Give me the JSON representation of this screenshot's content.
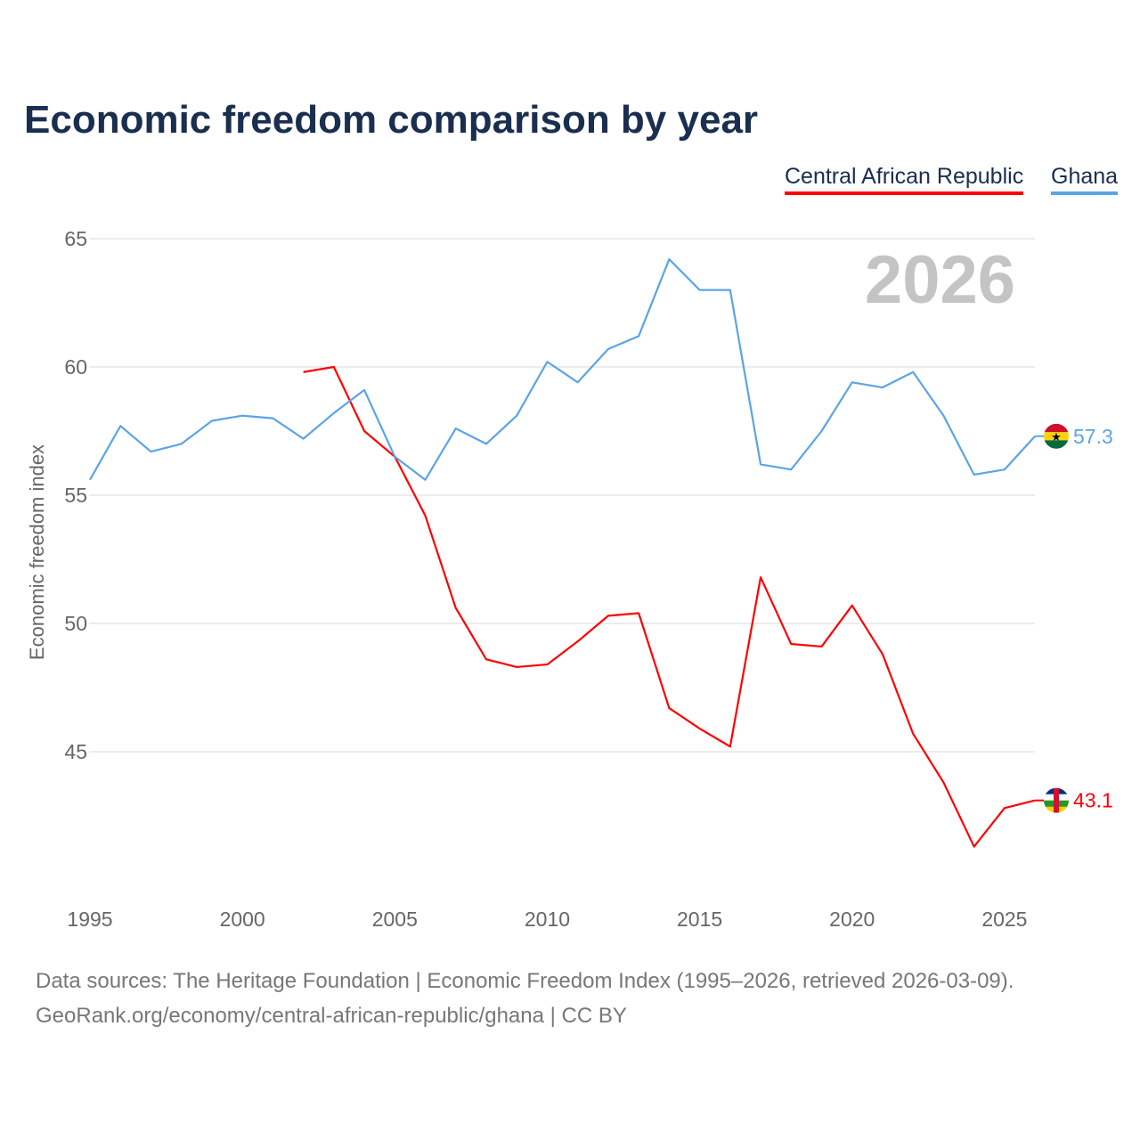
{
  "title": "Economic freedom comparison by year",
  "footer": {
    "line1": "Data sources: The Heritage Foundation | Economic Freedom Index (1995–2026, retrieved 2026-03-09).",
    "line2": "GeoRank.org/economy/central-african-republic/ghana | CC BY"
  },
  "chart_data": {
    "type": "line",
    "title": "Economic freedom comparison by year",
    "xlabel": "",
    "ylabel": "Economic freedom index",
    "xlim": [
      1995,
      2026
    ],
    "ylim": [
      40,
      65
    ],
    "x_ticks": [
      1995,
      2000,
      2005,
      2010,
      2015,
      2020,
      2025
    ],
    "y_ticks": [
      45,
      50,
      55,
      60,
      65
    ],
    "grid": true,
    "legend_position": "top-right",
    "year_annotation": "2026",
    "series": [
      {
        "name": "Central African Republic",
        "color": "#ff0000",
        "end_label": "43.1",
        "x": [
          2002,
          2003,
          2004,
          2005,
          2006,
          2007,
          2008,
          2009,
          2010,
          2011,
          2012,
          2013,
          2014,
          2015,
          2016,
          2017,
          2018,
          2019,
          2020,
          2021,
          2022,
          2023,
          2024,
          2025,
          2026
        ],
        "values": [
          59.8,
          60.0,
          57.5,
          56.5,
          54.2,
          50.6,
          48.6,
          48.3,
          48.4,
          49.3,
          50.3,
          50.4,
          46.7,
          45.9,
          45.2,
          51.8,
          49.2,
          49.1,
          50.7,
          48.8,
          45.7,
          43.8,
          41.3,
          42.8,
          43.1
        ]
      },
      {
        "name": "Ghana",
        "color": "#5ba4e8",
        "end_label": "57.3",
        "x": [
          1995,
          1996,
          1997,
          1998,
          1999,
          2000,
          2001,
          2002,
          2003,
          2004,
          2005,
          2006,
          2007,
          2008,
          2009,
          2010,
          2011,
          2012,
          2013,
          2014,
          2015,
          2016,
          2017,
          2018,
          2019,
          2020,
          2021,
          2022,
          2023,
          2024,
          2025,
          2026
        ],
        "values": [
          55.6,
          57.7,
          56.7,
          57.0,
          57.9,
          58.1,
          58.0,
          57.2,
          58.2,
          59.1,
          56.5,
          55.6,
          57.6,
          57.0,
          58.1,
          60.2,
          59.4,
          60.7,
          61.2,
          64.2,
          63.0,
          63.0,
          56.2,
          56.0,
          57.5,
          59.4,
          59.2,
          59.8,
          58.1,
          55.8,
          56.0,
          57.3
        ]
      }
    ]
  }
}
